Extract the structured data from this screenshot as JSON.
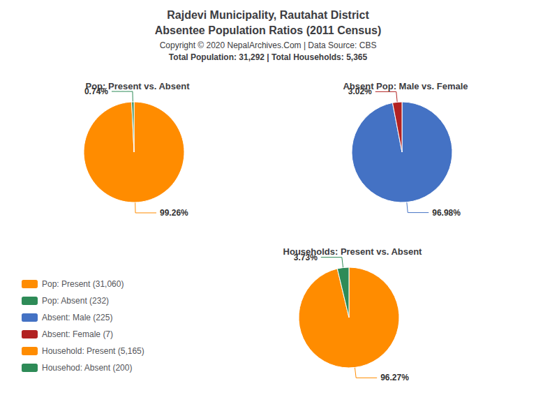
{
  "title": "Rajdevi Municipality, Rautahat District",
  "subtitle": "Absentee Population Ratios (2011 Census)",
  "annotations": [
    "Copyright © 2020 NepalArchives.Com | Data Source: CBS",
    "Total Population: 31,292 | Total Households: 5,365"
  ],
  "legend": "lower left",
  "chart_data": [
    {
      "type": "pie",
      "title": "Pop: Present vs. Absent",
      "categories": [
        "Pop: Present (31,060)",
        "Pop: Absent (232)"
      ],
      "values": [
        99.26,
        0.74
      ],
      "value_labels": [
        "99.26%",
        "0.74%"
      ],
      "colors": [
        "#FF8C00",
        "#2E8B57"
      ],
      "data_labels": true
    },
    {
      "type": "pie",
      "title": "Absent Pop: Male vs. Female",
      "categories": [
        "Absent: Male (225)",
        "Absent: Female (7)"
      ],
      "values": [
        96.98,
        3.02
      ],
      "value_labels": [
        "96.98%",
        "3.02%"
      ],
      "colors": [
        "#4472C4",
        "#B22222"
      ],
      "data_labels": true
    },
    {
      "type": "pie",
      "title": "Households: Present vs. Absent",
      "categories": [
        "Household: Present (5,165)",
        "Househod: Absent (200)"
      ],
      "values": [
        96.27,
        3.73
      ],
      "value_labels": [
        "96.27%",
        "3.73%"
      ],
      "colors": [
        "#FF8C00",
        "#2E8B57"
      ],
      "data_labels": true
    }
  ]
}
